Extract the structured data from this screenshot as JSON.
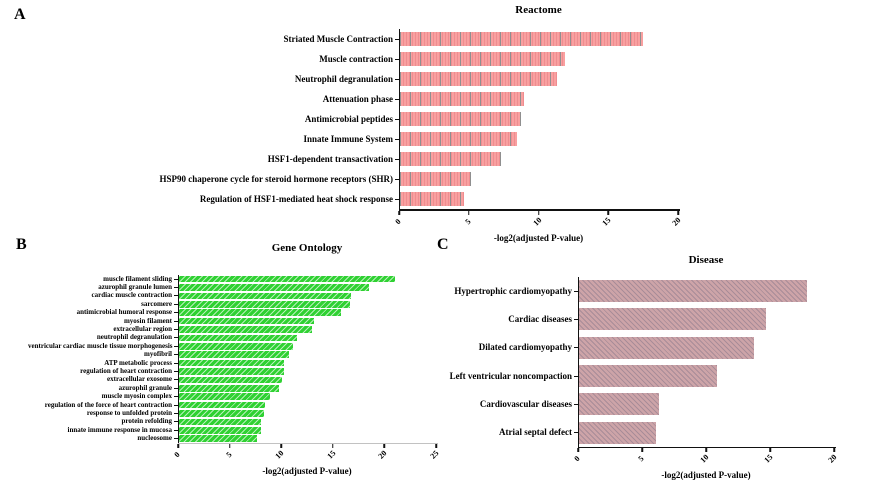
{
  "figure": {
    "background": "#ffffff"
  },
  "panels": [
    {
      "letter": "A"
    },
    {
      "letter": "B"
    },
    {
      "letter": "C"
    }
  ],
  "chart_data": [
    {
      "type": "bar",
      "orientation": "horizontal",
      "title": "Reactome",
      "xlabel": "-log2(adjusted P-value)",
      "xlim": [
        0,
        20
      ],
      "xticks": [
        0,
        5,
        10,
        15,
        20
      ],
      "grid": false,
      "legend": false,
      "bar_color": "#f9a0a0",
      "hatch": "vertical",
      "hatch_color": "#8f8f8f",
      "categories": [
        "Striated Muscle Contraction",
        "Muscle contraction",
        "Neutrophil degranulation",
        "Attenuation phase",
        "Antimicrobial peptides",
        "Innate Immune System",
        "HSF1-dependent transactivation",
        "HSP90 chaperone cycle for steroid hormone receptors (SHR)",
        "Regulation of HSF1-mediated heat shock response"
      ],
      "values": [
        17.5,
        11.9,
        11.3,
        8.9,
        8.7,
        8.4,
        7.3,
        5.1,
        4.6
      ]
    },
    {
      "type": "bar",
      "orientation": "horizontal",
      "title": "Gene Ontology",
      "xlabel": "-log2(adjusted P-value)",
      "xlim": [
        0,
        25
      ],
      "xticks": [
        0,
        5,
        10,
        15,
        20,
        25
      ],
      "grid": false,
      "legend": false,
      "bar_color": "#2fd132",
      "hatch": "diagonal-up",
      "hatch_color": "#ffffff",
      "categories": [
        "muscle filament sliding",
        "azurophil granule lumen",
        "cardiac muscle contraction",
        "sarcomere",
        "antimicrobial humoral response",
        "myosin filament",
        "extracellular region",
        "neutrophil degranulation",
        "ventricular cardiac muscle tissue morphogenesis",
        "myofibril",
        "ATP metabolic process",
        "regulation of heart contraction",
        "extracellular exosome",
        "azurophil granule",
        "muscle myosin complex",
        "regulation of the force of heart contraction",
        "response to unfolded protein",
        "protein refolding",
        "innate immune response in mucosa",
        "nucleosome"
      ],
      "values": [
        21.0,
        18.5,
        16.7,
        16.6,
        15.8,
        13.1,
        12.9,
        11.5,
        11.1,
        10.7,
        10.2,
        10.2,
        10.0,
        9.7,
        8.9,
        8.4,
        8.3,
        8.0,
        8.0,
        7.6
      ]
    },
    {
      "type": "bar",
      "orientation": "horizontal",
      "title": "Disease",
      "xlabel": "-log2(adjusted P-value)",
      "xlim": [
        0,
        20
      ],
      "xticks": [
        0,
        5,
        10,
        15,
        20
      ],
      "grid": false,
      "legend": false,
      "bar_color": "#cda4a8",
      "hatch": "diagonal-down",
      "hatch_color": "#6c647d",
      "categories": [
        "Hypertrophic cardiomyopathy",
        "Cardiac diseases",
        "Dilated cardiomyopathy",
        "Left ventricular noncompaction",
        "Cardiovascular diseases",
        "Atrial septal defect"
      ],
      "values": [
        17.9,
        14.7,
        13.7,
        10.8,
        6.3,
        6.0
      ]
    }
  ]
}
